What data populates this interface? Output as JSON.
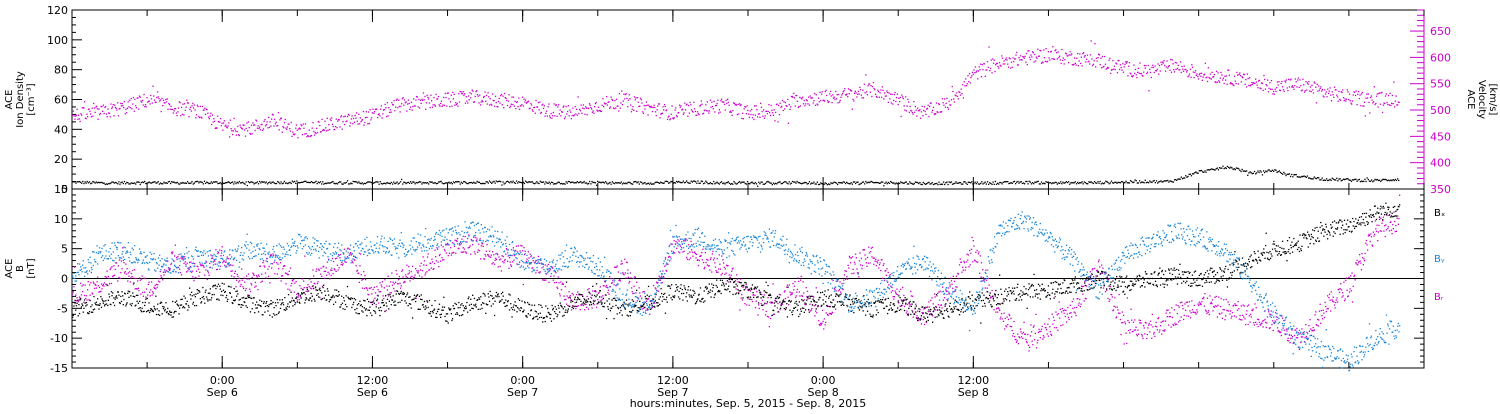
{
  "colors": {
    "axis": "#000000",
    "density": "#000000",
    "velocity": "#cc00cc",
    "bx": "#000000",
    "by": "#1a86d8",
    "bz": "#cc00cc"
  },
  "chart_data": [
    {
      "type": "scatter",
      "panel": "top",
      "ylabel_left": [
        "ACE",
        "Ion Density",
        "[cm⁻³]"
      ],
      "ylabel_right": [
        "ACE",
        "Velocity",
        "[km/s]"
      ],
      "ylim_left": [
        0,
        120
      ],
      "ylim_right": [
        350,
        690
      ],
      "yticks_left": [
        0,
        20,
        40,
        60,
        80,
        100,
        120
      ],
      "yticks_right": [
        350,
        400,
        450,
        500,
        550,
        600,
        650
      ],
      "grid": false,
      "series": [
        {
          "axis": "left",
          "color": "#000000",
          "x": [
            0,
            2,
            4,
            6,
            8,
            10,
            12,
            14,
            16,
            18,
            20,
            22,
            24,
            26,
            28,
            30,
            32,
            34,
            36,
            38,
            40,
            42,
            44,
            46,
            48,
            50,
            52,
            54,
            56,
            58,
            60,
            62,
            64,
            66,
            68,
            70,
            72,
            74,
            76,
            78,
            80,
            82,
            84,
            86,
            87,
            88,
            89,
            90,
            91,
            92,
            93,
            94,
            95,
            96,
            97,
            98,
            100,
            102,
            104,
            106
          ],
          "y": [
            5,
            4.5,
            4.5,
            4.8,
            4.5,
            4.6,
            4.7,
            4.5,
            4.8,
            5,
            4.6,
            4.7,
            4.5,
            4.4,
            4.6,
            4.8,
            4.7,
            5.2,
            5,
            4.6,
            4.5,
            4.7,
            4.3,
            4.5,
            4.8,
            5,
            4.5,
            4.6,
            4.4,
            4.7,
            4.2,
            4.5,
            4.6,
            4.7,
            4.2,
            4.3,
            4.5,
            4.4,
            4.8,
            4.6,
            4.5,
            4.7,
            5,
            5.5,
            5.2,
            6,
            9,
            12,
            13,
            15,
            14,
            11,
            12,
            13,
            10,
            9,
            7,
            6.5,
            6,
            7
          ]
        },
        {
          "axis": "right",
          "color": "#cc00cc",
          "x": [
            0,
            2,
            4,
            6,
            8,
            10,
            12,
            14,
            16,
            18,
            20,
            22,
            24,
            26,
            28,
            30,
            32,
            34,
            36,
            38,
            40,
            42,
            44,
            46,
            48,
            50,
            52,
            54,
            56,
            58,
            60,
            62,
            64,
            66,
            68,
            70,
            72,
            74,
            76,
            78,
            80,
            82,
            84,
            86,
            88,
            90,
            92,
            94,
            96,
            98,
            100,
            102,
            104,
            106
          ],
          "y": [
            490,
            495,
            505,
            520,
            505,
            500,
            470,
            465,
            480,
            460,
            470,
            480,
            490,
            510,
            515,
            520,
            525,
            520,
            515,
            500,
            495,
            510,
            520,
            505,
            495,
            505,
            510,
            495,
            500,
            520,
            525,
            530,
            540,
            520,
            495,
            515,
            570,
            590,
            600,
            605,
            600,
            595,
            580,
            575,
            585,
            570,
            565,
            555,
            545,
            550,
            535,
            525,
            520,
            525
          ]
        }
      ]
    },
    {
      "type": "scatter",
      "panel": "bottom",
      "ylabel": [
        "ACE",
        "B",
        "[nT]"
      ],
      "ylim": [
        -15,
        15
      ],
      "yticks": [
        -15,
        -10,
        -5,
        0,
        5,
        10,
        15
      ],
      "legend": [
        "Bₓ",
        "Bᵧ",
        "Bᵣ"
      ],
      "legend_placement": "right",
      "grid": false,
      "series": [
        {
          "name": "Bx",
          "color": "#000000",
          "x": [
            0,
            2,
            4,
            6,
            8,
            10,
            12,
            14,
            16,
            18,
            20,
            22,
            24,
            26,
            28,
            30,
            32,
            34,
            36,
            38,
            40,
            42,
            44,
            46,
            48,
            50,
            52,
            54,
            56,
            58,
            60,
            62,
            64,
            66,
            68,
            70,
            72,
            74,
            76,
            78,
            80,
            82,
            84,
            86,
            88,
            90,
            92,
            94,
            96,
            98,
            100,
            102,
            104,
            106
          ],
          "y": [
            -5,
            -4,
            -3,
            -4.5,
            -5,
            -3,
            -2,
            -4,
            -5,
            -3,
            -2,
            -4,
            -5,
            -3,
            -4,
            -6,
            -4,
            -3,
            -5,
            -6,
            -4,
            -3,
            -5,
            -4,
            -2,
            -3,
            -1,
            -2,
            -4,
            -5,
            -3,
            -4,
            -5,
            -4,
            -6,
            -5,
            -4,
            -3,
            -2,
            -2,
            -1,
            0,
            -1,
            0,
            0.5,
            0,
            1,
            3,
            5,
            6,
            8,
            9,
            11,
            12
          ]
        },
        {
          "name": "By",
          "color": "#1a86d8",
          "x": [
            0,
            2,
            4,
            6,
            8,
            10,
            12,
            14,
            16,
            18,
            20,
            22,
            24,
            26,
            28,
            30,
            32,
            34,
            36,
            38,
            40,
            42,
            44,
            46,
            48,
            50,
            52,
            54,
            56,
            58,
            60,
            62,
            64,
            66,
            68,
            70,
            72,
            74,
            76,
            78,
            80,
            82,
            84,
            86,
            88,
            90,
            92,
            94,
            96,
            98,
            100,
            102,
            104,
            106
          ],
          "y": [
            0,
            4,
            5,
            3,
            2,
            4,
            3,
            5,
            4,
            6,
            5,
            4,
            6,
            5,
            6,
            7,
            8,
            7,
            3,
            2,
            4,
            2,
            -3,
            -5,
            6,
            7,
            5,
            6,
            7,
            4,
            2,
            -4,
            -3,
            1,
            3,
            -2,
            -5,
            8,
            10,
            7,
            3,
            -2,
            4,
            6,
            8,
            7,
            5,
            0,
            -6,
            -10,
            -12,
            -14,
            -10,
            -8
          ]
        },
        {
          "name": "Bz",
          "color": "#cc00cc",
          "x": [
            0,
            2,
            4,
            6,
            8,
            10,
            12,
            14,
            16,
            18,
            20,
            22,
            24,
            26,
            28,
            30,
            32,
            34,
            36,
            38,
            40,
            42,
            44,
            46,
            48,
            50,
            52,
            54,
            56,
            58,
            60,
            62,
            64,
            66,
            68,
            70,
            72,
            74,
            76,
            78,
            80,
            82,
            84,
            86,
            88,
            90,
            92,
            94,
            96,
            98,
            100,
            102,
            104,
            106
          ],
          "y": [
            -3,
            -1,
            2,
            -2,
            3,
            1,
            4,
            -1,
            3,
            -2,
            1,
            4,
            -3,
            0,
            2,
            5,
            6,
            3,
            4,
            1,
            -4,
            -3,
            2,
            -5,
            6,
            4,
            2,
            -3,
            -5,
            -1,
            -7,
            2,
            4,
            -3,
            -6,
            -2,
            5,
            -6,
            -10,
            -8,
            -5,
            2,
            -8,
            -9,
            -6,
            -4,
            -5,
            -6,
            -7,
            -10,
            -5,
            -1,
            8,
            10
          ]
        }
      ]
    }
  ],
  "x_axis": {
    "xlim": [
      0,
      108
    ],
    "tick_hours": [
      0,
      6,
      12,
      18,
      24,
      30,
      36,
      42,
      48,
      54,
      60,
      66,
      72,
      78,
      84,
      90,
      96,
      102,
      108
    ],
    "major_ticks": [
      {
        "h": 12,
        "time": "0:00",
        "date": "Sep 6"
      },
      {
        "h": 24,
        "time": "12:00",
        "date": "Sep 6"
      },
      {
        "h": 36,
        "time": "0:00",
        "date": "Sep 7"
      },
      {
        "h": 48,
        "time": "12:00",
        "date": "Sep 7"
      },
      {
        "h": 60,
        "time": "0:00",
        "date": "Sep 8"
      },
      {
        "h": 72,
        "time": "12:00",
        "date": "Sep 8"
      }
    ],
    "xlabel": "hours:minutes, Sep. 5, 2015 - Sep. 8, 2015"
  }
}
